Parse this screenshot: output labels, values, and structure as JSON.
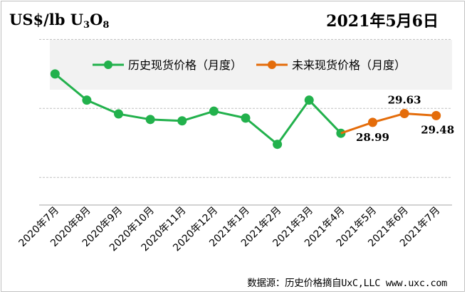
{
  "header": {
    "unit_prefix": "US$/lb U",
    "unit_sub1": "3",
    "unit_mid": "O",
    "unit_sub2": "8",
    "date": "2021年5月6日"
  },
  "source": "数据源：历史价格摘自UxC,LLC  www.uxc.com",
  "colors": {
    "historical": "#22b14c",
    "forecast": "#e46c0a",
    "grid": "#bfbfbf",
    "legend_bg": "#f2f2f2"
  },
  "chart_data": {
    "type": "line",
    "title": "",
    "xlabel": "",
    "ylabel": "US$/lb U3O8",
    "categories": [
      "2020年7月",
      "2020年8月",
      "2020年9月",
      "2020年10月",
      "2020年11月",
      "2020年12月",
      "2021年1月",
      "2021年2月",
      "2021年3月",
      "2021年4月",
      "2021年5月",
      "2021年6月",
      "2021年7月"
    ],
    "ylim": [
      23,
      36
    ],
    "grid": true,
    "legend_position": "top",
    "series": [
      {
        "name": "历史现货价格（月度）",
        "color": "#22b14c",
        "values": [
          32.5,
          30.6,
          29.6,
          29.2,
          29.1,
          29.8,
          29.3,
          27.4,
          30.6,
          28.2,
          null,
          null,
          null
        ]
      },
      {
        "name": "未来现货价格（月度）",
        "color": "#e46c0a",
        "values": [
          null,
          null,
          null,
          null,
          null,
          null,
          null,
          null,
          null,
          28.2,
          28.99,
          29.63,
          29.48
        ],
        "data_labels": [
          "",
          "",
          "",
          "",
          "",
          "",
          "",
          "",
          "",
          "",
          "28.99",
          "29.63",
          "29.48"
        ]
      }
    ]
  }
}
